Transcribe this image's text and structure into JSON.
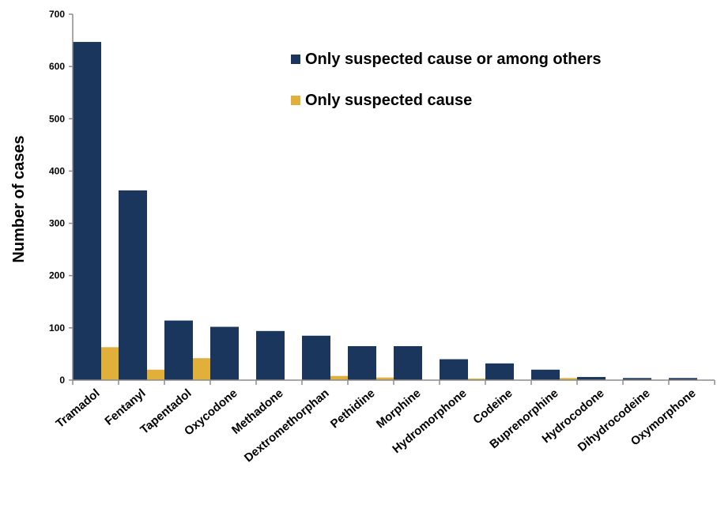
{
  "chart_data": {
    "type": "bar",
    "title": "",
    "xlabel": "",
    "ylabel": "Number of cases",
    "ylim": [
      0,
      700
    ],
    "yticks": [
      0,
      100,
      200,
      300,
      400,
      500,
      600,
      700
    ],
    "grid": false,
    "legend_position": "top-right",
    "categories": [
      "Tramadol",
      "Fentanyl",
      "Tapentadol",
      "Oxycodone",
      "Methadone",
      "Dextromethorphan",
      "Pethidine",
      "Morphine",
      "Hydromorphone",
      "Codeine",
      "Buprenorphine",
      "Hydrocodone",
      "Dihydrocodeine",
      "Oxymorphone"
    ],
    "series": [
      {
        "name": "Only suspected cause or among others",
        "color": "#1b365d",
        "values": [
          647,
          363,
          114,
          102,
          94,
          85,
          65,
          65,
          40,
          32,
          20,
          6,
          4,
          4
        ]
      },
      {
        "name": "Only suspected cause",
        "color": "#e0b03a",
        "values": [
          63,
          20,
          42,
          0,
          0,
          8,
          5,
          0,
          3,
          0,
          4,
          0,
          0,
          0
        ]
      }
    ]
  }
}
